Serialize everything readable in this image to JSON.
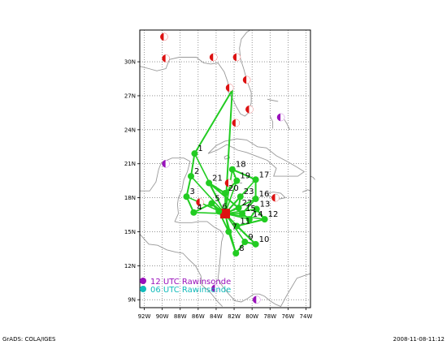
{
  "map": {
    "lon_ticks": [
      "92W",
      "90W",
      "88W",
      "86W",
      "84W",
      "82W",
      "80W",
      "78W",
      "76W",
      "74W"
    ],
    "lat_ticks": [
      "9N",
      "12N",
      "15N",
      "18N",
      "21N",
      "24N",
      "27N",
      "30N"
    ],
    "colors": {
      "track": "#22cc22",
      "observation": "#dd1111",
      "rawinsonde_12utc": "#9911bb",
      "rawinsonde_06utc": "#11bbbb",
      "storm_center": "#dd1111",
      "coast": "#999999",
      "grid": "#555555"
    },
    "waypoints": [
      {
        "n": "1",
        "lon": -86.4,
        "lat": 21.9
      },
      {
        "n": "2",
        "lon": -86.8,
        "lat": 19.9
      },
      {
        "n": "3",
        "lon": -87.3,
        "lat": 18.1
      },
      {
        "n": "4",
        "lon": -86.5,
        "lat": 16.7
      },
      {
        "n": "5",
        "lon": -84.5,
        "lat": 17.5
      },
      {
        "n": "6",
        "lon": -83.7,
        "lat": 16.8
      },
      {
        "n": "7",
        "lon": -82.6,
        "lat": 15.0
      },
      {
        "n": "8",
        "lon": -81.8,
        "lat": 13.1
      },
      {
        "n": "9",
        "lon": -80.8,
        "lat": 14.1
      },
      {
        "n": "10",
        "lon": -79.6,
        "lat": 13.9
      },
      {
        "n": "11",
        "lon": -81.7,
        "lat": 15.5
      },
      {
        "n": "12",
        "lon": -78.6,
        "lat": 16.1
      },
      {
        "n": "13",
        "lon": -79.5,
        "lat": 17.0
      },
      {
        "n": "14",
        "lon": -80.3,
        "lat": 16.1
      },
      {
        "n": "15",
        "lon": -81.1,
        "lat": 16.6
      },
      {
        "n": "16",
        "lon": -79.6,
        "lat": 17.9
      },
      {
        "n": "17",
        "lon": -79.6,
        "lat": 19.6
      },
      {
        "n": "18",
        "lon": -82.2,
        "lat": 20.5
      },
      {
        "n": "19",
        "lon": -81.7,
        "lat": 19.5
      },
      {
        "n": "20",
        "lon": -83.0,
        "lat": 18.4
      },
      {
        "n": "21",
        "lon": -84.8,
        "lat": 19.3
      },
      {
        "n": "22",
        "lon": -81.5,
        "lat": 17.1
      },
      {
        "n": "23",
        "lon": -81.3,
        "lat": 18.1
      }
    ],
    "track_order": [
      "1",
      "2",
      "3",
      "4",
      "5",
      "6",
      "7",
      "8",
      "9",
      "10",
      "11",
      "12",
      "13",
      "14",
      "15",
      "16",
      "17",
      "18",
      "19",
      "20",
      "21",
      "22",
      "23"
    ],
    "observations": [
      {
        "lon": -89.8,
        "lat": 32.2
      },
      {
        "lon": -89.6,
        "lat": 30.3
      },
      {
        "lon": -84.3,
        "lat": 30.4
      },
      {
        "lon": -81.7,
        "lat": 30.4
      },
      {
        "lon": -80.6,
        "lat": 28.4
      },
      {
        "lon": -82.5,
        "lat": 27.7
      },
      {
        "lon": -80.3,
        "lat": 25.8
      },
      {
        "lon": -81.8,
        "lat": 24.6
      },
      {
        "lon": -82.6,
        "lat": 19.3
      },
      {
        "lon": -77.4,
        "lat": 18.0
      },
      {
        "lon": -85.8,
        "lat": 17.6
      }
    ],
    "rawinsonde_12utc": [
      {
        "lon": -76.8,
        "lat": 25.1
      },
      {
        "lon": -89.6,
        "lat": 21.0
      },
      {
        "lon": -84.1,
        "lat": 10.0
      },
      {
        "lon": -79.5,
        "lat": 9.0
      }
    ],
    "storm_center": {
      "lon": -83.0,
      "lat": 16.6
    },
    "legend": [
      {
        "label": "12 UTC Rawinsonde",
        "color": "#9911bb"
      },
      {
        "label": "06 UTC Rawinsonde",
        "color": "#11bbbb"
      }
    ]
  },
  "footer": {
    "left": "GrADS: COLA/IGES",
    "right": "2008-11-08-11:12"
  }
}
